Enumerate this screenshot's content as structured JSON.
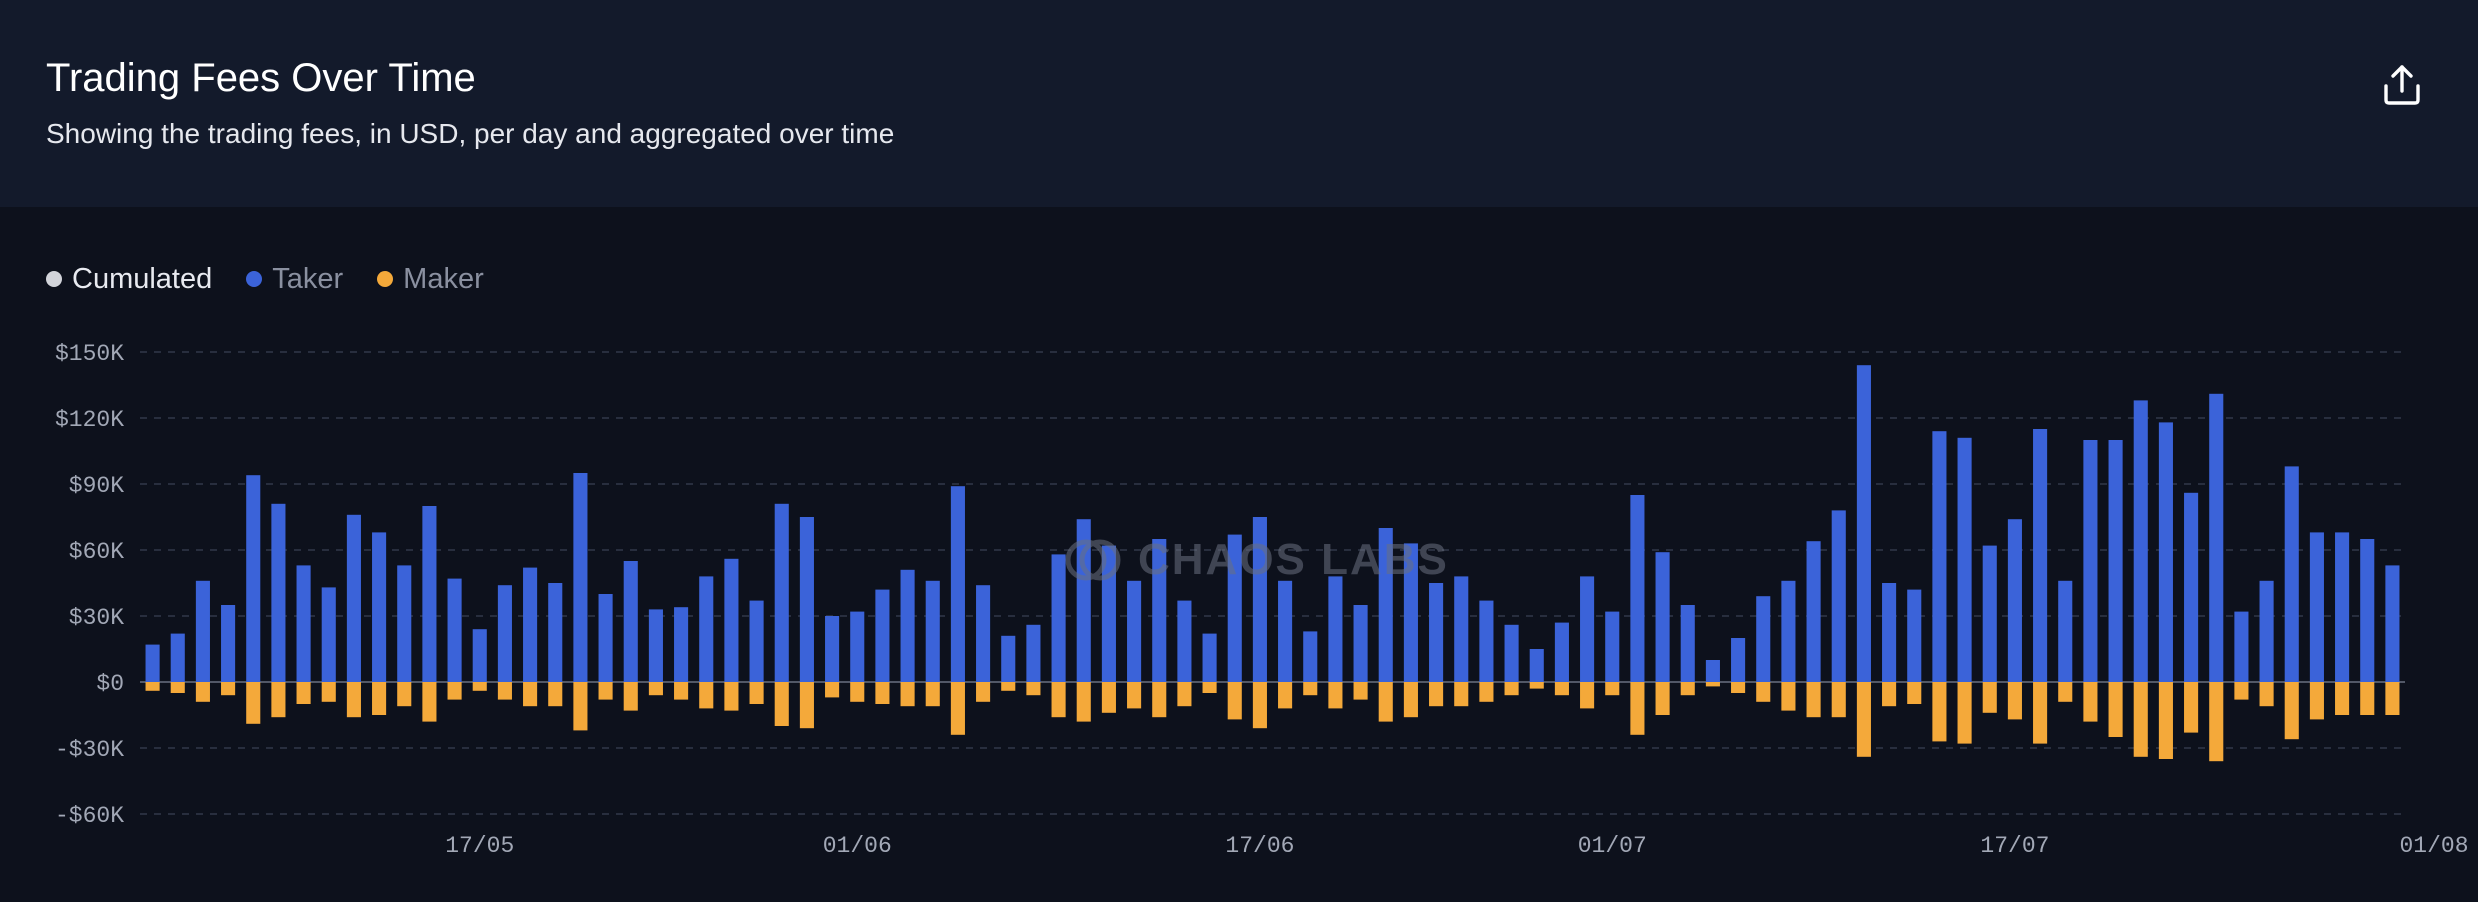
{
  "header": {
    "title": "Trading Fees Over Time",
    "subtitle": "Showing the trading fees, in USD, per day and aggregated over time",
    "export_icon": "share-upload-icon"
  },
  "legend": [
    {
      "label": "Cumulated",
      "color": "#d2d4da"
    },
    {
      "label": "Taker",
      "color": "#3b63d9"
    },
    {
      "label": "Maker",
      "color": "#f4a93a"
    }
  ],
  "watermark": "CHAOS LABS",
  "chart_data": {
    "type": "bar",
    "title": "Trading Fees Over Time",
    "ylabel": "USD",
    "ylim": [
      -60000,
      150000
    ],
    "yticks": [
      150000,
      120000,
      90000,
      60000,
      30000,
      0,
      -30000,
      -60000
    ],
    "ytick_labels": [
      "$150K",
      "$120K",
      "$90K",
      "$60K",
      "$30K",
      "$0",
      "-$30K",
      "-$60K"
    ],
    "xtick_labels": [
      {
        "label": "17/05",
        "index": 13
      },
      {
        "label": "01/06",
        "index": 28
      },
      {
        "label": "17/06",
        "index": 44
      },
      {
        "label": "01/07",
        "index": 58
      },
      {
        "label": "17/07",
        "index": 74
      },
      {
        "label": "01/08",
        "index": 89
      }
    ],
    "grid": true,
    "series": [
      {
        "name": "Taker",
        "color": "#3b63d9",
        "values": [
          17000,
          22000,
          46000,
          35000,
          94000,
          81000,
          53000,
          43000,
          76000,
          68000,
          53000,
          80000,
          47000,
          24000,
          44000,
          52000,
          45000,
          95000,
          40000,
          55000,
          33000,
          34000,
          48000,
          56000,
          37000,
          81000,
          75000,
          30000,
          32000,
          42000,
          51000,
          46000,
          89000,
          44000,
          21000,
          26000,
          58000,
          74000,
          62000,
          46000,
          65000,
          37000,
          22000,
          67000,
          75000,
          46000,
          23000,
          48000,
          35000,
          70000,
          63000,
          45000,
          48000,
          37000,
          26000,
          15000,
          27000,
          48000,
          32000,
          85000,
          59000,
          35000,
          10000,
          20000,
          39000,
          46000,
          64000,
          78000,
          144000,
          45000,
          42000,
          114000,
          111000,
          62000,
          74000,
          115000,
          46000,
          110000,
          110000,
          128000,
          118000,
          86000,
          131000,
          32000,
          46000,
          98000,
          68000,
          68000,
          65000,
          53000
        ]
      },
      {
        "name": "Maker",
        "color": "#f4a93a",
        "values": [
          -4000,
          -5000,
          -9000,
          -6000,
          -19000,
          -16000,
          -10000,
          -9000,
          -16000,
          -15000,
          -11000,
          -18000,
          -8000,
          -4000,
          -8000,
          -11000,
          -11000,
          -22000,
          -8000,
          -13000,
          -6000,
          -8000,
          -12000,
          -13000,
          -10000,
          -20000,
          -21000,
          -7000,
          -9000,
          -10000,
          -11000,
          -11000,
          -24000,
          -9000,
          -4000,
          -6000,
          -16000,
          -18000,
          -14000,
          -12000,
          -16000,
          -11000,
          -5000,
          -17000,
          -21000,
          -12000,
          -6000,
          -12000,
          -8000,
          -18000,
          -16000,
          -11000,
          -11000,
          -9000,
          -6000,
          -3000,
          -6000,
          -12000,
          -6000,
          -24000,
          -15000,
          -6000,
          -2000,
          -5000,
          -9000,
          -13000,
          -16000,
          -16000,
          -34000,
          -11000,
          -10000,
          -27000,
          -28000,
          -14000,
          -17000,
          -28000,
          -9000,
          -18000,
          -25000,
          -34000,
          -35000,
          -23000,
          -36000,
          -8000,
          -11000,
          -26000,
          -17000,
          -15000,
          -15000,
          -15000
        ]
      }
    ]
  }
}
